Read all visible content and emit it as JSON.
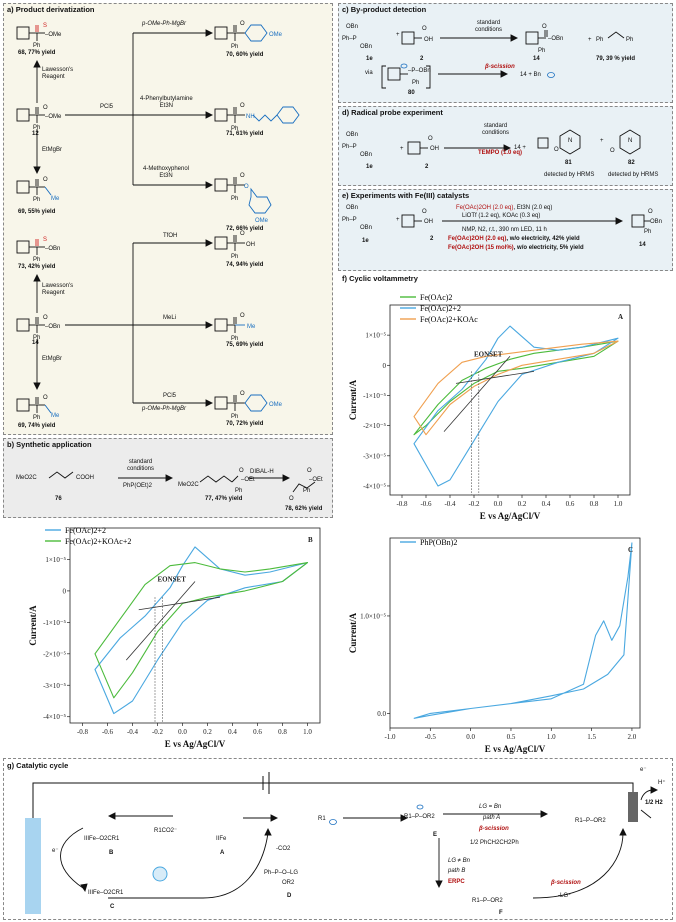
{
  "a": {
    "title": "a) Product derivatization",
    "cpd68": "68, 77% yield",
    "lawesson1": "Lawesson's\nReagent",
    "pcl3_top": "PCl5",
    "cpd12": "12",
    "etmgbr1": "EtMgBr",
    "cpd69a": "69, 55% yield",
    "cpd73": "73, 42% yield",
    "lawesson2": "Lawesson's\nReagent",
    "cpd14": "14",
    "etmgbr2": "EtMgBr",
    "cpd69b": "69, 74% yield",
    "r_pome": "p-OMe-Ph-MgBr",
    "r_phenylbutylamine": "4-Phenylbutylamine\nEt3N",
    "r_methoxyphenol": "4-Methoxyphenol\nEt3N",
    "r_tfoh": "TfOH",
    "r_meli": "MeLi",
    "r_pcl5": "PCl5",
    "r_pome2": "p-OMe-Ph-MgBr",
    "cpd70a": "70, 60% yield",
    "cpd71": "71, 61% yield",
    "cpd72": "72, 66% yield",
    "cpd74": "74, 94% yield",
    "cpd75": "75, 69% yield",
    "cpd70b": "70, 72% yield"
  },
  "b": {
    "title": "b) Synthetic application",
    "start": "MeO2C",
    "start_acid": "COOH",
    "cpd76": "76",
    "cond1": "standard\nconditions",
    "cond2": "PhP(OEt)2",
    "cpd77": "77, 47% yield",
    "dibal": "DIBAL-H",
    "cpd78": "78, 62% yield"
  },
  "c": {
    "title": "c) By-product detection",
    "cond": "standard\nconditions",
    "cpd1e": "1e",
    "cpd2": "2",
    "cpd14": "14",
    "cpd79": "79, 39 % yield",
    "via": "via",
    "cpd80": "80",
    "beta": "β-scission",
    "prod": "14 + Bn"
  },
  "d": {
    "title": "d) Radical probe experiment",
    "cond": "standard\nconditions",
    "tempo": "TEMPO (1.0 eq)",
    "cpd1e": "1e",
    "cpd2": "2",
    "plus14": "14 +",
    "cpd81": "81",
    "cpd82": "82",
    "det1": "detected by HRMS",
    "det2": "detected by HRMS"
  },
  "e": {
    "title": "e) Experiments with Fe(III) catalysts",
    "line1a": "Fe(OAc)2OH (2.0 eq)",
    "line1b": ", Et3N (2.0 eq)",
    "line2": "LiOTf (1.2 eq), KOAc (0.3 eq)",
    "line3": "NMP, N2, r.t., 390 nm LED, 11 h",
    "line4a": "Fe(OAc)2OH (2.0 eq)",
    "line4b": ", w/o electricity, 42% yield",
    "line5a": "Fe(OAc)2OH (15 mol%)",
    "line5b": ", w/o electricity, 5% yield",
    "cpd1e": "1e",
    "cpd2": "2",
    "cpd14": "14"
  },
  "f": {
    "title": "f) Cyclic voltammetry",
    "panelA": "A",
    "panelB": "B",
    "panelC": "C",
    "ylabel": "Current/A",
    "xlabel": "E vs Ag/AgCl/V",
    "eonset": "EONSET",
    "legendA": [
      "Fe(OAc)2",
      "Fe(OAc)2+2",
      "Fe(OAc)2+KOAc"
    ],
    "legendB": [
      "Fe(OAc)2+2",
      "Fe(OAc)2+KOAc+2"
    ],
    "legendC": [
      "PhP(OBn)2"
    ],
    "colors": {
      "green": "#4cbb3c",
      "blue": "#4aa8e0",
      "orange": "#f0a050",
      "dark": "#333333"
    }
  },
  "chart_data": [
    {
      "type": "line",
      "panel": "A",
      "xlabel": "E vs Ag/AgCl/V",
      "ylabel": "Current/A",
      "xlim": [
        -0.9,
        1.1
      ],
      "ylim": [
        -4.3e-05,
        2e-05
      ],
      "xticks": [
        "-0.8",
        "-0.6",
        "-0.4",
        "-0.2",
        "0.0",
        "0.2",
        "0.4",
        "0.6",
        "0.8",
        "1.0"
      ],
      "yticks": [
        "1×10⁻⁵",
        "0",
        "-1×10⁻⁵",
        "-2×10⁻⁵",
        "-3×10⁻⁵",
        "-4×10⁻⁵"
      ],
      "series": [
        {
          "name": "Fe(OAc)2",
          "color": "#4cbb3c",
          "x": [
            -0.7,
            -0.5,
            -0.3,
            -0.1,
            0.1,
            0.3,
            0.5,
            0.7,
            1.0,
            0.8,
            0.5,
            0.2,
            0.0,
            -0.2,
            -0.4,
            -0.6,
            -0.7
          ],
          "y": [
            -2.3e-05,
            -1.3e-05,
            -5e-06,
            -1e-06,
            2e-06,
            4e-06,
            5e-06,
            6e-06,
            8e-06,
            3e-06,
            1e-06,
            -1e-06,
            -2e-06,
            -6e-06,
            -1.2e-05,
            -2e-05,
            -2.3e-05
          ]
        },
        {
          "name": "Fe(OAc)2+2",
          "color": "#4aa8e0",
          "x": [
            -0.7,
            -0.5,
            -0.3,
            -0.1,
            0.0,
            0.1,
            0.3,
            0.5,
            0.7,
            1.0,
            0.8,
            0.5,
            0.2,
            0.0,
            -0.2,
            -0.4,
            -0.5,
            -0.7
          ],
          "y": [
            -2.6e-05,
            -1.5e-05,
            -8e-06,
            2e-06,
            9e-06,
            1.3e-05,
            6e-06,
            5e-06,
            6e-06,
            9e-06,
            4e-06,
            1e-06,
            -3e-06,
            -1.2e-05,
            -2.5e-05,
            -3.8e-05,
            -4e-05,
            -2.6e-05
          ]
        },
        {
          "name": "Fe(OAc)2+KOAc",
          "color": "#f0a050",
          "x": [
            -0.7,
            -0.5,
            -0.3,
            -0.1,
            0.1,
            0.3,
            0.5,
            0.7,
            1.0,
            0.8,
            0.5,
            0.2,
            0.0,
            -0.2,
            -0.4,
            -0.6,
            -0.7
          ],
          "y": [
            -1.7e-05,
            -6e-06,
            1e-06,
            3e-06,
            4e-06,
            5e-06,
            6e-06,
            7e-06,
            8e-06,
            4e-06,
            2e-06,
            0.0,
            -3e-06,
            -7e-06,
            -1.3e-05,
            -2.3e-05,
            -1.7e-05
          ]
        }
      ]
    },
    {
      "type": "line",
      "panel": "B",
      "xlabel": "E vs Ag/AgCl/V",
      "ylabel": "Current/A",
      "xlim": [
        -0.9,
        1.1
      ],
      "ylim": [
        -4.2e-05,
        2e-05
      ],
      "xticks": [
        "-0.8",
        "-0.6",
        "-0.4",
        "-0.2",
        "0.0",
        "0.2",
        "0.4",
        "0.6",
        "0.8",
        "1.0"
      ],
      "yticks": [
        "1×10⁻⁵",
        "0",
        "-1×10⁻⁵",
        "-2×10⁻⁵",
        "-3×10⁻⁵",
        "-4×10⁻⁵"
      ],
      "series": [
        {
          "name": "Fe(OAc)2+2",
          "color": "#4aa8e0",
          "x": [
            -0.7,
            -0.5,
            -0.3,
            -0.1,
            0.0,
            0.1,
            0.3,
            0.5,
            0.7,
            1.0,
            0.8,
            0.5,
            0.2,
            0.0,
            -0.2,
            -0.4,
            -0.55,
            -0.7
          ],
          "y": [
            -2.5e-05,
            -1.5e-05,
            -8e-06,
            1e-06,
            8e-06,
            1.4e-05,
            7e-06,
            5e-06,
            6e-06,
            9e-06,
            3e-06,
            1e-06,
            -3e-06,
            -1e-05,
            -2.2e-05,
            -3.5e-05,
            -3.9e-05,
            -2.5e-05
          ]
        },
        {
          "name": "Fe(OAc)2+KOAc+2",
          "color": "#4cbb3c",
          "x": [
            -0.7,
            -0.5,
            -0.3,
            -0.1,
            0.1,
            0.3,
            0.5,
            0.7,
            1.0,
            0.8,
            0.5,
            0.2,
            0.0,
            -0.2,
            -0.4,
            -0.55,
            -0.7
          ],
          "y": [
            -2e-05,
            -9e-06,
            2e-06,
            8e-06,
            9e-06,
            7e-06,
            6e-06,
            7e-06,
            9e-06,
            3e-06,
            0.0,
            -2e-06,
            -4e-06,
            -1.3e-05,
            -2.6e-05,
            -3.4e-05,
            -2e-05
          ]
        }
      ]
    },
    {
      "type": "line",
      "panel": "C",
      "xlabel": "E vs Ag/AgCl/V",
      "ylabel": "Current/A",
      "xlim": [
        -1.0,
        2.1
      ],
      "ylim": [
        -1.5e-06,
        1.8e-05
      ],
      "xticks": [
        "-1.0",
        "-0.5",
        "0.0",
        "0.5",
        "1.0",
        "1.5",
        "2.0"
      ],
      "yticks": [
        "1.0×10⁻⁵",
        "0.0"
      ],
      "series": [
        {
          "name": "PhP(OBn)2",
          "color": "#4aa8e0",
          "x": [
            -0.7,
            -0.5,
            0.0,
            0.5,
            1.0,
            1.4,
            1.55,
            1.65,
            1.75,
            1.85,
            1.95,
            2.0,
            1.9,
            1.7,
            1.4,
            1.0,
            0.5,
            0.0,
            -0.5,
            -0.7
          ],
          "y": [
            -5e-07,
            0.0,
            5e-07,
            1e-06,
            1.5e-06,
            3e-06,
            8e-06,
            9.5e-06,
            7.5e-06,
            9e-06,
            1.4e-05,
            1.75e-05,
            6e-06,
            4e-06,
            2.5e-06,
            1.8e-06,
            1e-06,
            5e-07,
            -2e-07,
            -5e-07
          ]
        }
      ]
    }
  ],
  "g": {
    "title": "g) Catalytic cycle",
    "electrode_top": "e⁻",
    "h_plus": "H⁺",
    "h2": "1/2 H2",
    "e_left": "e⁻",
    "B": "B",
    "A": "A",
    "C": "C",
    "D": "D",
    "E": "E",
    "F": "F",
    "FeB": "IIIFe–O2CR1",
    "FeA": "IIFe",
    "FeC": "IIIFe–O2CR1",
    "carboxylate": "R1CO2⁻",
    "co2": "-CO2",
    "radical": "R1",
    "phosphite": "Ph–P–O–LG",
    "phosphite_or": "OR2",
    "pathA_cond": "LG = Bn",
    "pathA": "path A",
    "beta1": "β-scission",
    "bibenzyl": "1/2 PhCH2CH2Ph",
    "pathB_cond": "LG ≠ Bn",
    "pathB": "path B",
    "erpc": "ERPC",
    "beta2": "β-scission",
    "lg": "-LG⁺",
    "prodE": "R1–P–OR2",
    "prodF": "R1–P–OR2",
    "final": "R1–P–OR2"
  }
}
